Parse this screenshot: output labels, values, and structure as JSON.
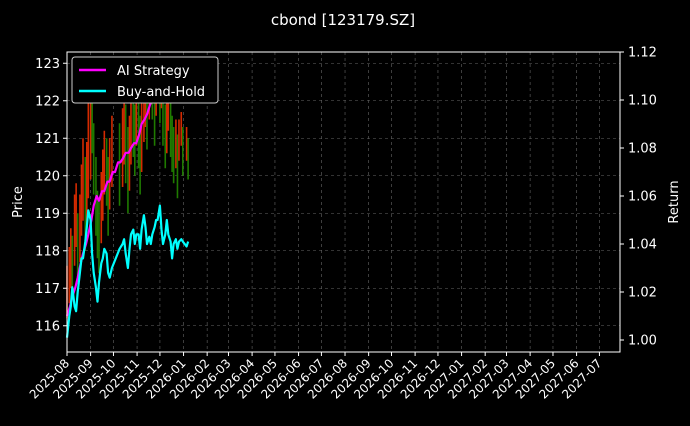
{
  "chart_data": {
    "type": "line",
    "title": "cbond [123179.SZ]",
    "ylabel_left": "Price",
    "ylabel_right": "Return",
    "ylim_left": [
      115.3,
      123.3
    ],
    "ylim_right": [
      0.995,
      1.12
    ],
    "xlim": [
      "2025-08-01",
      "2027-07-28"
    ],
    "yticks_left": [
      116,
      117,
      118,
      119,
      120,
      121,
      122,
      123
    ],
    "yticks_right": [
      1.0,
      1.02,
      1.04,
      1.06,
      1.08,
      1.1,
      1.12
    ],
    "yticks_right_labels": [
      "1.00",
      "1.02",
      "1.04",
      "1.06",
      "1.08",
      "1.10",
      "1.12"
    ],
    "xticks": [
      "2025-08",
      "2025-09",
      "2025-10",
      "2025-11",
      "2025-12",
      "2026-01",
      "2026-02",
      "2026-03",
      "2026-04",
      "2026-05",
      "2026-06",
      "2026-07",
      "2026-08",
      "2026-09",
      "2026-10",
      "2026-11",
      "2026-12",
      "2027-01",
      "2027-02",
      "2027-03",
      "2027-04",
      "2027-05",
      "2027-06",
      "2027-07"
    ],
    "grid": true,
    "legend_position": "top-left",
    "price_candles": {
      "dates": [
        "2025-08-01",
        "2025-08-04",
        "2025-08-06",
        "2025-08-08",
        "2025-08-11",
        "2025-08-13",
        "2025-08-15",
        "2025-08-18",
        "2025-08-20",
        "2025-08-22",
        "2025-08-25",
        "2025-08-27",
        "2025-08-29",
        "2025-09-01",
        "2025-09-03",
        "2025-09-05",
        "2025-09-08",
        "2025-09-10",
        "2025-09-12",
        "2025-09-15",
        "2025-09-17",
        "2025-09-19",
        "2025-09-22",
        "2025-09-24",
        "2025-09-26",
        "2025-09-29",
        "2025-10-09",
        "2025-10-13",
        "2025-10-15",
        "2025-10-17",
        "2025-10-20",
        "2025-10-22",
        "2025-10-24",
        "2025-10-27",
        "2025-10-29",
        "2025-10-31",
        "2025-11-03",
        "2025-11-05",
        "2025-11-07",
        "2025-11-10",
        "2025-11-12",
        "2025-11-14",
        "2025-11-17",
        "2025-11-19",
        "2025-11-21",
        "2025-11-24",
        "2025-11-26",
        "2025-11-28",
        "2025-12-01",
        "2025-12-03",
        "2025-12-05",
        "2025-12-08",
        "2025-12-10",
        "2025-12-12",
        "2025-12-15",
        "2025-12-17",
        "2025-12-19",
        "2025-12-22",
        "2025-12-24",
        "2025-12-26",
        "2025-12-29",
        "2025-12-31",
        "2026-01-05",
        "2026-01-07"
      ],
      "low": [
        116.2,
        116.6,
        117.0,
        116.8,
        117.6,
        118.1,
        117.2,
        117.7,
        118.4,
        118.8,
        118.0,
        118.6,
        119.4,
        119.9,
        120.6,
        119.5,
        118.4,
        117.8,
        117.4,
        118.2,
        118.8,
        119.5,
        119.2,
        118.4,
        119.1,
        119.7,
        119.2,
        119.7,
        120.3,
        119.8,
        119.0,
        119.6,
        120.3,
        120.5,
        120.0,
        120.8,
        120.2,
        119.5,
        120.1,
        120.9,
        121.3,
        120.7,
        121.5,
        121.9,
        121.5,
        120.8,
        121.6,
        122.0,
        121.4,
        121.8,
        120.8,
        120.2,
        120.6,
        121.2,
        120.5,
        120.1,
        119.8,
        120.2,
        119.4,
        120.4,
        120.8,
        120.0,
        120.4,
        119.9
      ],
      "high": [
        117.6,
        118.1,
        118.6,
        118.4,
        119.5,
        119.8,
        119.0,
        119.5,
        120.3,
        121.0,
        120.5,
        120.9,
        122.1,
        122.4,
        122.0,
        121.4,
        120.5,
        119.6,
        119.3,
        120.1,
        120.7,
        121.2,
        121.0,
        120.5,
        121.0,
        121.6,
        121.4,
        121.8,
        122.1,
        121.9,
        121.3,
        121.6,
        122.2,
        122.2,
        121.9,
        122.3,
        122.0,
        121.6,
        122.0,
        122.5,
        122.8,
        122.4,
        122.9,
        123.0,
        122.8,
        122.2,
        122.7,
        123.0,
        122.6,
        122.9,
        122.4,
        121.9,
        122.0,
        122.4,
        122.0,
        121.6,
        121.3,
        121.5,
        121.1,
        121.5,
        121.7,
        121.3,
        121.3,
        121.0
      ],
      "up": [
        true,
        true,
        true,
        false,
        true,
        true,
        false,
        true,
        true,
        true,
        false,
        true,
        true,
        true,
        false,
        false,
        false,
        false,
        false,
        true,
        true,
        true,
        false,
        false,
        true,
        true,
        false,
        true,
        true,
        false,
        false,
        true,
        true,
        false,
        false,
        true,
        false,
        false,
        true,
        true,
        true,
        false,
        true,
        true,
        false,
        false,
        true,
        true,
        false,
        true,
        false,
        false,
        true,
        true,
        false,
        false,
        false,
        true,
        false,
        true,
        true,
        false,
        true,
        false
      ]
    },
    "series": [
      {
        "name": "AI Strategy",
        "color": "#ff00ff",
        "x": [
          "2025-08-01",
          "2025-08-05",
          "2025-08-08",
          "2025-08-12",
          "2025-08-15",
          "2025-08-19",
          "2025-08-22",
          "2025-08-26",
          "2025-08-29",
          "2025-09-02",
          "2025-09-05",
          "2025-09-09",
          "2025-09-12",
          "2025-09-16",
          "2025-09-19",
          "2025-09-23",
          "2025-09-26",
          "2025-09-30",
          "2025-10-03",
          "2025-10-07",
          "2025-10-10",
          "2025-10-14",
          "2025-10-17",
          "2025-10-21",
          "2025-10-24",
          "2025-10-28",
          "2025-10-31",
          "2025-11-04",
          "2025-11-07",
          "2025-11-11",
          "2025-11-14",
          "2025-11-18",
          "2025-11-21",
          "2025-11-25",
          "2025-11-28",
          "2025-12-02",
          "2025-12-05",
          "2025-12-09",
          "2025-12-12"
        ],
        "y": [
          1.01,
          1.014,
          1.018,
          1.022,
          1.026,
          1.032,
          1.036,
          1.04,
          1.044,
          1.05,
          1.056,
          1.06,
          1.058,
          1.062,
          1.062,
          1.066,
          1.066,
          1.07,
          1.07,
          1.074,
          1.074,
          1.076,
          1.078,
          1.078,
          1.08,
          1.082,
          1.082,
          1.086,
          1.09,
          1.092,
          1.094,
          1.098,
          1.1,
          1.104,
          1.108,
          1.11,
          1.112,
          1.116,
          1.118
        ]
      },
      {
        "name": "Buy-and-Hold",
        "color": "#00ffff",
        "x": [
          "2025-08-01",
          "2025-08-04",
          "2025-08-06",
          "2025-08-08",
          "2025-08-11",
          "2025-08-13",
          "2025-08-15",
          "2025-08-18",
          "2025-08-20",
          "2025-08-22",
          "2025-08-25",
          "2025-08-27",
          "2025-08-29",
          "2025-09-01",
          "2025-09-03",
          "2025-09-05",
          "2025-09-08",
          "2025-09-10",
          "2025-09-12",
          "2025-09-15",
          "2025-09-17",
          "2025-09-19",
          "2025-09-22",
          "2025-09-24",
          "2025-09-26",
          "2025-09-29",
          "2025-10-09",
          "2025-10-13",
          "2025-10-15",
          "2025-10-17",
          "2025-10-20",
          "2025-10-22",
          "2025-10-24",
          "2025-10-27",
          "2025-10-29",
          "2025-10-31",
          "2025-11-03",
          "2025-11-05",
          "2025-11-07",
          "2025-11-10",
          "2025-11-12",
          "2025-11-14",
          "2025-11-17",
          "2025-11-19",
          "2025-11-21",
          "2025-11-24",
          "2025-11-26",
          "2025-11-28",
          "2025-12-01",
          "2025-12-03",
          "2025-12-05",
          "2025-12-08",
          "2025-12-10",
          "2025-12-12",
          "2025-12-15",
          "2025-12-17",
          "2025-12-19",
          "2025-12-22",
          "2025-12-24",
          "2025-12-26",
          "2025-12-29",
          "2025-12-31",
          "2026-01-05",
          "2026-01-07"
        ],
        "y": [
          1.001,
          1.01,
          1.014,
          1.022,
          1.014,
          1.012,
          1.02,
          1.028,
          1.034,
          1.034,
          1.041,
          1.047,
          1.054,
          1.05,
          1.036,
          1.028,
          1.022,
          1.016,
          1.024,
          1.032,
          1.034,
          1.038,
          1.036,
          1.028,
          1.026,
          1.03,
          1.038,
          1.04,
          1.042,
          1.036,
          1.03,
          1.038,
          1.044,
          1.046,
          1.04,
          1.044,
          1.044,
          1.038,
          1.046,
          1.052,
          1.047,
          1.04,
          1.043,
          1.04,
          1.044,
          1.047,
          1.05,
          1.05,
          1.056,
          1.046,
          1.04,
          1.044,
          1.05,
          1.044,
          1.041,
          1.034,
          1.04,
          1.042,
          1.038,
          1.041,
          1.042,
          1.041,
          1.039,
          1.041
        ]
      }
    ]
  }
}
